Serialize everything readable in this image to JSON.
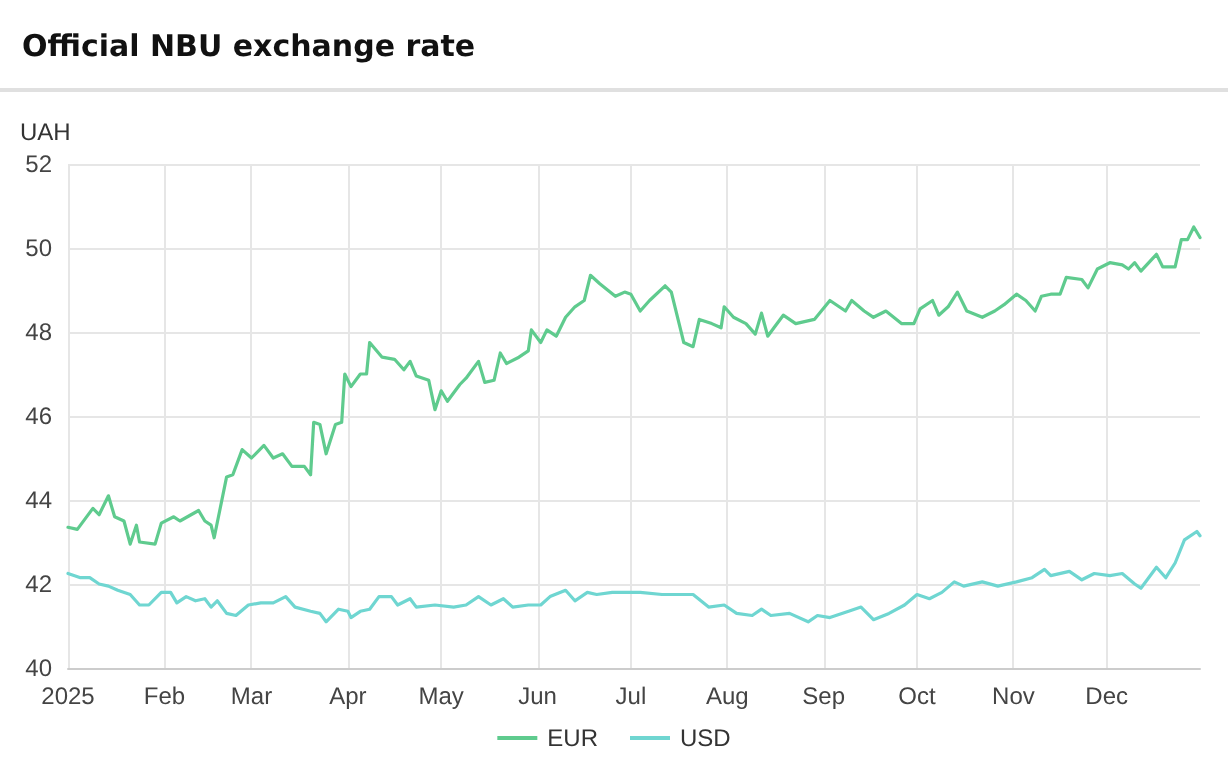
{
  "chart_data": {
    "type": "line",
    "title": "Official NBU exchange rate",
    "ylabel": "UAH",
    "xlim": [
      "2025-01-01",
      "2025-12-31"
    ],
    "xticks": [
      {
        "value": "2025-01-01",
        "label": "2025"
      },
      {
        "value": "2025-02-01",
        "label": "Feb"
      },
      {
        "value": "2025-03-01",
        "label": "Mar"
      },
      {
        "value": "2025-04-01",
        "label": "Apr"
      },
      {
        "value": "2025-05-01",
        "label": "May"
      },
      {
        "value": "2025-06-01",
        "label": "Jun"
      },
      {
        "value": "2025-07-01",
        "label": "Jul"
      },
      {
        "value": "2025-08-01",
        "label": "Aug"
      },
      {
        "value": "2025-09-01",
        "label": "Sep"
      },
      {
        "value": "2025-10-01",
        "label": "Oct"
      },
      {
        "value": "2025-11-01",
        "label": "Nov"
      },
      {
        "value": "2025-12-01",
        "label": "Dec"
      }
    ],
    "ylim": [
      40,
      52
    ],
    "yticks": [
      40,
      42,
      44,
      46,
      48,
      50,
      52
    ],
    "grid": true,
    "legend": "bottom",
    "marker": "none",
    "line_style": "solid",
    "series": [
      {
        "name": "EUR",
        "color": "#5fcb8e",
        "x": [
          "2025-01-01",
          "2025-01-04",
          "2025-01-09",
          "2025-01-11",
          "2025-01-14",
          "2025-01-16",
          "2025-01-19",
          "2025-01-21",
          "2025-01-23",
          "2025-01-24",
          "2025-01-29",
          "2025-01-31",
          "2025-02-04",
          "2025-02-06",
          "2025-02-12",
          "2025-02-14",
          "2025-02-16",
          "2025-02-17",
          "2025-02-21",
          "2025-02-23",
          "2025-02-26",
          "2025-03-01",
          "2025-03-05",
          "2025-03-08",
          "2025-03-11",
          "2025-03-14",
          "2025-03-18",
          "2025-03-20",
          "2025-03-21",
          "2025-03-23",
          "2025-03-25",
          "2025-03-28",
          "2025-03-30",
          "2025-03-31",
          "2025-04-02",
          "2025-04-05",
          "2025-04-07",
          "2025-04-08",
          "2025-04-12",
          "2025-04-16",
          "2025-04-19",
          "2025-04-21",
          "2025-04-23",
          "2025-04-27",
          "2025-04-29",
          "2025-05-01",
          "2025-05-03",
          "2025-05-07",
          "2025-05-09",
          "2025-05-13",
          "2025-05-15",
          "2025-05-18",
          "2025-05-20",
          "2025-05-22",
          "2025-05-26",
          "2025-05-29",
          "2025-05-30",
          "2025-06-02",
          "2025-06-04",
          "2025-06-07",
          "2025-06-10",
          "2025-06-13",
          "2025-06-16",
          "2025-06-18",
          "2025-06-21",
          "2025-06-26",
          "2025-06-29",
          "2025-07-01",
          "2025-07-04",
          "2025-07-07",
          "2025-07-12",
          "2025-07-14",
          "2025-07-17",
          "2025-07-18",
          "2025-07-21",
          "2025-07-23",
          "2025-07-27",
          "2025-07-30",
          "2025-07-31",
          "2025-08-03",
          "2025-08-07",
          "2025-08-10",
          "2025-08-12",
          "2025-08-14",
          "2025-08-16",
          "2025-08-19",
          "2025-08-23",
          "2025-08-29",
          "2025-09-03",
          "2025-09-08",
          "2025-09-10",
          "2025-09-14",
          "2025-09-17",
          "2025-09-21",
          "2025-09-26",
          "2025-09-30",
          "2025-10-02",
          "2025-10-06",
          "2025-10-08",
          "2025-10-11",
          "2025-10-14",
          "2025-10-17",
          "2025-10-22",
          "2025-10-26",
          "2025-10-29",
          "2025-11-02",
          "2025-11-05",
          "2025-11-08",
          "2025-11-10",
          "2025-11-13",
          "2025-11-16",
          "2025-11-18",
          "2025-11-23",
          "2025-11-25",
          "2025-11-28",
          "2025-12-02",
          "2025-12-06",
          "2025-12-08",
          "2025-12-10",
          "2025-12-12",
          "2025-12-17",
          "2025-12-19",
          "2025-12-23",
          "2025-12-25",
          "2025-12-27",
          "2025-12-29",
          "2025-12-31"
        ],
        "values": [
          43.35,
          43.3,
          43.8,
          43.65,
          44.1,
          43.6,
          43.5,
          42.95,
          43.4,
          43.0,
          42.95,
          43.45,
          43.6,
          43.5,
          43.75,
          43.5,
          43.4,
          43.1,
          44.55,
          44.6,
          45.2,
          45.0,
          45.3,
          45.0,
          45.1,
          44.8,
          44.8,
          44.6,
          45.85,
          45.8,
          45.1,
          45.8,
          45.85,
          47.0,
          46.7,
          47.0,
          47.0,
          47.75,
          47.4,
          47.35,
          47.1,
          47.3,
          46.95,
          46.85,
          46.15,
          46.6,
          46.35,
          46.75,
          46.9,
          47.3,
          46.8,
          46.85,
          47.5,
          47.25,
          47.4,
          47.55,
          48.05,
          47.75,
          48.05,
          47.9,
          48.35,
          48.6,
          48.75,
          49.35,
          49.15,
          48.85,
          48.95,
          48.9,
          48.5,
          48.75,
          49.1,
          48.95,
          48.05,
          47.75,
          47.65,
          48.3,
          48.2,
          48.1,
          48.6,
          48.35,
          48.2,
          47.95,
          48.45,
          47.9,
          48.1,
          48.4,
          48.2,
          48.3,
          48.75,
          48.5,
          48.75,
          48.5,
          48.35,
          48.5,
          48.2,
          48.2,
          48.55,
          48.75,
          48.4,
          48.6,
          48.95,
          48.5,
          48.35,
          48.5,
          48.65,
          48.9,
          48.75,
          48.5,
          48.85,
          48.9,
          48.9,
          49.3,
          49.25,
          49.05,
          49.5,
          49.65,
          49.6,
          49.5,
          49.65,
          49.45,
          49.85,
          49.55,
          49.55,
          50.2,
          50.2,
          50.5,
          50.25
        ]
      },
      {
        "name": "USD",
        "color": "#6fd6d1",
        "x": [
          "2025-01-01",
          "2025-01-05",
          "2025-01-08",
          "2025-01-11",
          "2025-01-14",
          "2025-01-17",
          "2025-01-21",
          "2025-01-24",
          "2025-01-27",
          "2025-01-31",
          "2025-02-03",
          "2025-02-05",
          "2025-02-08",
          "2025-02-11",
          "2025-02-14",
          "2025-02-16",
          "2025-02-18",
          "2025-02-21",
          "2025-02-24",
          "2025-02-28",
          "2025-03-04",
          "2025-03-08",
          "2025-03-12",
          "2025-03-15",
          "2025-03-20",
          "2025-03-23",
          "2025-03-25",
          "2025-03-29",
          "2025-04-01",
          "2025-04-02",
          "2025-04-05",
          "2025-04-08",
          "2025-04-11",
          "2025-04-15",
          "2025-04-17",
          "2025-04-21",
          "2025-04-23",
          "2025-04-29",
          "2025-05-05",
          "2025-05-09",
          "2025-05-13",
          "2025-05-17",
          "2025-05-21",
          "2025-05-24",
          "2025-05-29",
          "2025-06-02",
          "2025-06-05",
          "2025-06-10",
          "2025-06-13",
          "2025-06-17",
          "2025-06-20",
          "2025-06-25",
          "2025-06-30",
          "2025-07-04",
          "2025-07-11",
          "2025-07-17",
          "2025-07-21",
          "2025-07-26",
          "2025-07-31",
          "2025-08-04",
          "2025-08-09",
          "2025-08-12",
          "2025-08-15",
          "2025-08-21",
          "2025-08-27",
          "2025-08-30",
          "2025-09-03",
          "2025-09-09",
          "2025-09-13",
          "2025-09-17",
          "2025-09-22",
          "2025-09-27",
          "2025-10-01",
          "2025-10-05",
          "2025-10-09",
          "2025-10-13",
          "2025-10-16",
          "2025-10-22",
          "2025-10-27",
          "2025-11-02",
          "2025-11-07",
          "2025-11-11",
          "2025-11-13",
          "2025-11-19",
          "2025-11-23",
          "2025-11-27",
          "2025-12-02",
          "2025-12-06",
          "2025-12-10",
          "2025-12-12",
          "2025-12-17",
          "2025-12-20",
          "2025-12-23",
          "2025-12-26",
          "2025-12-30",
          "2025-12-31"
        ],
        "values": [
          42.25,
          42.15,
          42.15,
          42.0,
          41.95,
          41.85,
          41.75,
          41.5,
          41.5,
          41.8,
          41.8,
          41.55,
          41.7,
          41.6,
          41.65,
          41.45,
          41.6,
          41.3,
          41.25,
          41.5,
          41.55,
          41.55,
          41.7,
          41.45,
          41.35,
          41.3,
          41.1,
          41.4,
          41.35,
          41.2,
          41.35,
          41.4,
          41.7,
          41.7,
          41.5,
          41.65,
          41.45,
          41.5,
          41.45,
          41.5,
          41.7,
          41.5,
          41.65,
          41.45,
          41.5,
          41.5,
          41.7,
          41.85,
          41.6,
          41.8,
          41.75,
          41.8,
          41.8,
          41.8,
          41.75,
          41.75,
          41.75,
          41.45,
          41.5,
          41.3,
          41.25,
          41.4,
          41.25,
          41.3,
          41.1,
          41.25,
          41.2,
          41.35,
          41.45,
          41.15,
          41.3,
          41.5,
          41.75,
          41.65,
          41.8,
          42.05,
          41.95,
          42.05,
          41.95,
          42.05,
          42.15,
          42.35,
          42.2,
          42.3,
          42.1,
          42.25,
          42.2,
          42.25,
          42.0,
          41.9,
          42.4,
          42.15,
          42.5,
          43.05,
          43.25,
          43.15
        ]
      }
    ]
  }
}
